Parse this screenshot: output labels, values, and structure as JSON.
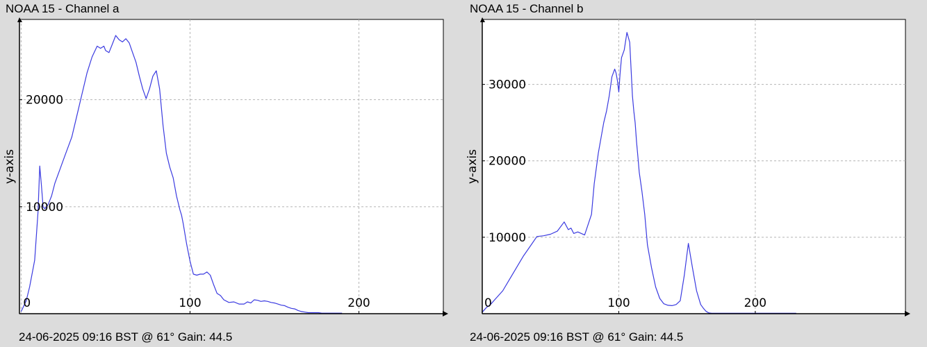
{
  "chart_data": [
    {
      "type": "line",
      "title": "NOAA 15 - Channel a",
      "caption": "24-06-2025 09:16 BST @ 61° Gain: 44.5",
      "ylabel": "y-axis",
      "xlim": [
        -1,
        250
      ],
      "ylim": [
        0,
        27500
      ],
      "xticks": [
        0,
        100,
        200
      ],
      "yticks": [
        0,
        10000,
        20000
      ],
      "grid": true,
      "color": "#3a3ae0",
      "series": [
        {
          "x": [
            0,
            3,
            5,
            8,
            10,
            11,
            12,
            13,
            14,
            16,
            18,
            20,
            23,
            26,
            30,
            33,
            36,
            39,
            42,
            45,
            47,
            49,
            50,
            52,
            54,
            56,
            58,
            60,
            62,
            64,
            66,
            68,
            70,
            72,
            74,
            76,
            78,
            80,
            82,
            84,
            86,
            88,
            90,
            92,
            94,
            95,
            96,
            98,
            100,
            102,
            104,
            106,
            108,
            110,
            112,
            114,
            116,
            118,
            120,
            123,
            126,
            129,
            132,
            134,
            136,
            138,
            140,
            142,
            144,
            146,
            148,
            150,
            152,
            154,
            156,
            158,
            160,
            162,
            164,
            166,
            168,
            170,
            172,
            174,
            176,
            178,
            180,
            182,
            184,
            186,
            188,
            190
          ],
          "y": [
            200,
            1200,
            2500,
            5000,
            9500,
            13800,
            12000,
            10000,
            9800,
            10200,
            11000,
            12200,
            13500,
            14800,
            16500,
            18500,
            20500,
            22500,
            24000,
            25000,
            24800,
            25000,
            24600,
            24400,
            25200,
            26000,
            25600,
            25400,
            25700,
            25300,
            24400,
            23500,
            22200,
            21000,
            20100,
            21000,
            22200,
            22700,
            21000,
            17600,
            15000,
            13700,
            12700,
            11000,
            9700,
            9200,
            8400,
            6500,
            4900,
            3700,
            3600,
            3700,
            3700,
            3900,
            3600,
            2700,
            1900,
            1700,
            1300,
            1050,
            1100,
            900,
            900,
            1100,
            1000,
            1300,
            1250,
            1150,
            1200,
            1150,
            1050,
            1000,
            900,
            800,
            750,
            600,
            500,
            450,
            300,
            200,
            150,
            100,
            100,
            100,
            100,
            50,
            50,
            50,
            50,
            50,
            50,
            50
          ]
        }
      ]
    },
    {
      "type": "line",
      "title": "NOAA 15 - Channel b",
      "caption": "24-06-2025 09:16 BST @ 61° Gain: 44.5",
      "ylabel": "y-axis",
      "xlim": [
        0,
        310
      ],
      "ylim": [
        0,
        38500
      ],
      "xticks": [
        0,
        100,
        200
      ],
      "yticks": [
        0,
        10000,
        20000,
        30000
      ],
      "grid": true,
      "color": "#3a3ae0",
      "series": [
        {
          "x": [
            0,
            3,
            6,
            10,
            15,
            20,
            25,
            30,
            35,
            40,
            45,
            50,
            55,
            60,
            63,
            65,
            67,
            70,
            75,
            80,
            82,
            85,
            87,
            89,
            91,
            93,
            95,
            97,
            98,
            99,
            100,
            101,
            102,
            104,
            106,
            108,
            110,
            111,
            112,
            113,
            114,
            115,
            117,
            119,
            121,
            124,
            127,
            130,
            133,
            136,
            139,
            142,
            145,
            148,
            151,
            154,
            157,
            160,
            162,
            163,
            164,
            165,
            166,
            168,
            170,
            172,
            175,
            178,
            181,
            185,
            190,
            200,
            210,
            220,
            230
          ],
          "y": [
            200,
            800,
            1200,
            2000,
            3000,
            4500,
            6000,
            7500,
            8800,
            10100,
            10200,
            10400,
            10800,
            12000,
            11000,
            11200,
            10500,
            10700,
            10300,
            13000,
            17000,
            21000,
            23000,
            25000,
            26500,
            28500,
            31000,
            32000,
            31500,
            30500,
            29000,
            31500,
            33500,
            34500,
            36800,
            35500,
            28500,
            26500,
            25000,
            22500,
            20500,
            18500,
            16000,
            13000,
            9000,
            6000,
            3500,
            2000,
            1300,
            1100,
            1050,
            1200,
            1700,
            5000,
            9200,
            6000,
            3000,
            1200,
            700,
            500,
            300,
            200,
            100,
            50,
            50,
            50,
            50,
            50,
            50,
            50,
            50,
            50,
            50,
            50,
            50
          ]
        }
      ]
    }
  ]
}
